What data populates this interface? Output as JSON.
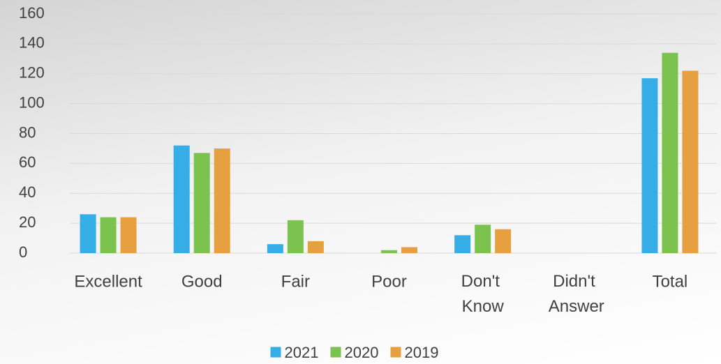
{
  "chart_data": {
    "type": "bar",
    "categories": [
      "Excellent",
      "Good",
      "Fair",
      "Poor",
      "Don't Know",
      "Didn't Answer",
      "Total"
    ],
    "series": [
      {
        "name": "2021",
        "color": "#35aee8",
        "values": [
          26,
          72,
          6,
          0,
          12,
          0,
          117
        ]
      },
      {
        "name": "2020",
        "color": "#7cc24e",
        "values": [
          24,
          67,
          22,
          2,
          19,
          0,
          134
        ]
      },
      {
        "name": "2019",
        "color": "#e6a040",
        "values": [
          24,
          70,
          8,
          4,
          16,
          0,
          122
        ]
      }
    ],
    "ylim": [
      0,
      160
    ],
    "yticks": [
      0,
      20,
      40,
      60,
      80,
      100,
      120,
      140,
      160
    ],
    "grid": true,
    "legend": "bottom"
  }
}
